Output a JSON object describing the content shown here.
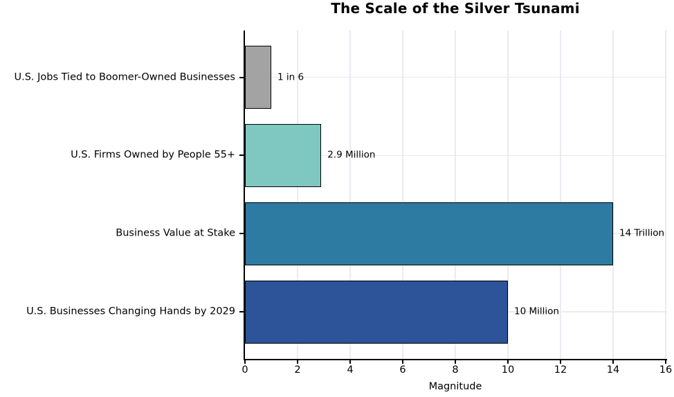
{
  "chart_data": {
    "type": "bar",
    "orientation": "horizontal",
    "title": "The Scale of the Silver Tsunami",
    "xlabel": "Magnitude",
    "ylabel": "",
    "xlim": [
      0,
      16
    ],
    "xticks": [
      0,
      2,
      4,
      6,
      8,
      10,
      12,
      14,
      16
    ],
    "grid": true,
    "legend_position": "none",
    "categories": [
      "U.S. Jobs Tied to Boomer-Owned Businesses",
      "U.S. Firms Owned by People 55+",
      "Business Value at Stake",
      "U.S. Businesses Changing Hands by 2029"
    ],
    "values": [
      1,
      2.9,
      14,
      10
    ],
    "value_labels": [
      "1 in 6",
      "2.9 Million",
      "14 Trillion",
      "10 Million"
    ],
    "bar_colors": [
      "#a3a3a3",
      "#7ec8c1",
      "#2d7aa3",
      "#2d5399"
    ],
    "bar_edge_color": "#000000",
    "grid_color": "#eaeaf0",
    "text_color": "#000000",
    "background_color": "#ffffff"
  }
}
